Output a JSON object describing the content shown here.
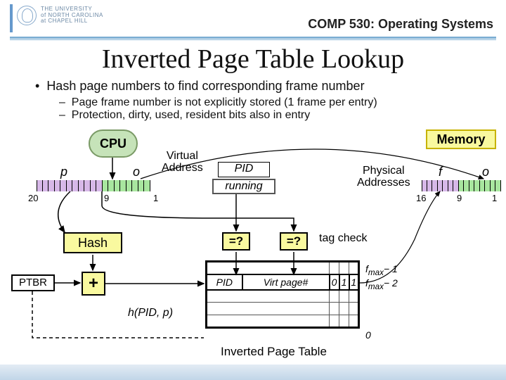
{
  "header": {
    "logo_lines": [
      "THE UNIVERSITY",
      "of NORTH CAROLINA",
      "at CHAPEL HILL"
    ],
    "course": "COMP 530: Operating Systems"
  },
  "title": "Inverted Page Table Lookup",
  "bullets": {
    "b1": "Hash page numbers to find corresponding frame number",
    "s1": "Page frame number is not explicitly stored (1 frame per entry)",
    "s2": "Protection, dirty, used, resident bits also in entry"
  },
  "cpu": "CPU",
  "memory": "Memory",
  "va_label": "Virtual\nAddress",
  "pa_label": "Physical\nAddresses",
  "p": "p",
  "o": "o",
  "f": "f",
  "nums": {
    "n20": "20",
    "n9": "9",
    "n1": "1",
    "n16": "16"
  },
  "pid": "PID",
  "running": "running",
  "hash": "Hash",
  "ptbr": "PTBR",
  "plus": "+",
  "eq": "=?",
  "tagcheck": "tag check",
  "hfunc": "h(PID, p)",
  "ipt": {
    "label": "Inverted Page Table",
    "col1": "PID",
    "col2": "Virt page#",
    "bits": [
      "0",
      "1",
      "1"
    ]
  },
  "fmax": {
    "top": "f_max− 1",
    "mid": "f_max− 2",
    "bot": "0"
  },
  "va_bar": {
    "p_cells": 11,
    "o_cells": 8
  },
  "pa_bar": {
    "p_cells": 7,
    "o_cells": 8
  },
  "colors": {
    "accent": "#7fb0d4",
    "cpu_fill": "#c6e3b9",
    "cpu_border": "#7a9a66",
    "mem_fill": "#f9f99f",
    "mem_border": "#c7b300",
    "purple": "#d7b8e8",
    "green": "#a8e69f"
  }
}
